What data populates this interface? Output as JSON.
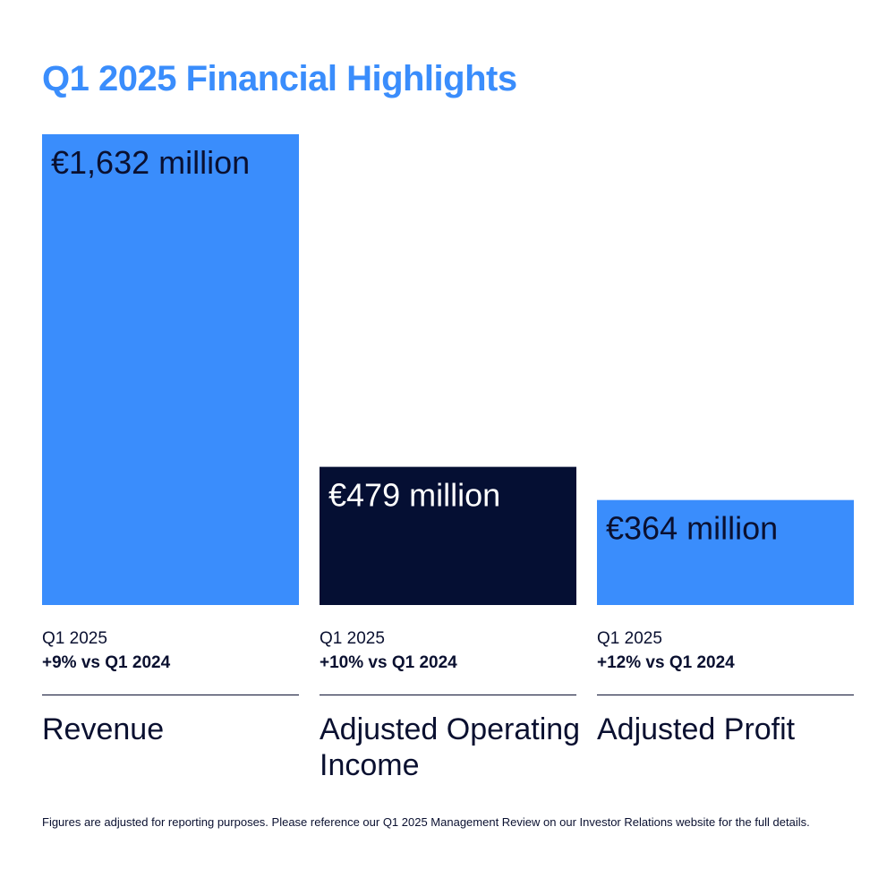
{
  "title": "Q1 2025 Financial Highlights",
  "colors": {
    "title": "#3a8dfc",
    "bar_blue": "#3a8dfc",
    "bar_navy": "#050f33",
    "text_dark": "#0a1030",
    "text_light": "#ffffff"
  },
  "chart_data": {
    "type": "bar",
    "categories": [
      "Revenue",
      "Adjusted Operating Income",
      "Adjusted Profit"
    ],
    "values": [
      1632,
      479,
      364
    ],
    "unit": "€ million",
    "bar_labels": [
      "€1,632 million",
      "€479 million",
      "€364 million"
    ],
    "bar_colors": [
      "#3a8dfc",
      "#050f33",
      "#3a8dfc"
    ],
    "label_colors": [
      "#0a1030",
      "#ffffff",
      "#0a1030"
    ]
  },
  "columns": [
    {
      "period": "Q1 2025",
      "change": "+9% vs Q1 2024",
      "metric": "Revenue"
    },
    {
      "period": "Q1 2025",
      "change": "+10% vs Q1 2024",
      "metric": "Adjusted Operating Income"
    },
    {
      "period": "Q1 2025",
      "change": "+12% vs Q1 2024",
      "metric": "Adjusted Profit"
    }
  ],
  "footnote": "Figures are adjusted for reporting purposes. Please reference our Q1 2025 Management Review on our Investor Relations website for the full details."
}
